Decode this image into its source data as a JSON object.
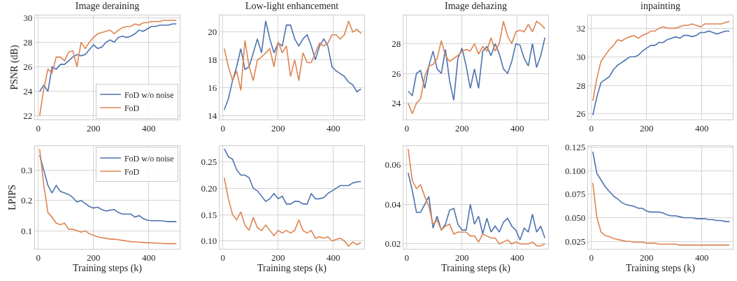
{
  "chart_data": [
    {
      "type": "line",
      "title": "Image deraining",
      "ylabel": "PSNR (dB)",
      "grid": true,
      "legend": "bottom right",
      "xlim": [
        -12,
        512
      ],
      "xticks": [
        0,
        200,
        400
      ],
      "ylim": [
        21.7,
        30.2
      ],
      "yticks": [
        22,
        24,
        26,
        28,
        30
      ],
      "x": [
        5,
        20,
        35,
        50,
        65,
        80,
        95,
        110,
        125,
        140,
        155,
        170,
        185,
        200,
        215,
        230,
        245,
        260,
        275,
        290,
        305,
        320,
        335,
        350,
        365,
        380,
        395,
        410,
        425,
        440,
        455,
        470,
        485,
        500
      ],
      "series": [
        {
          "name": "FoD w/o noise",
          "color": "#4c72b0",
          "values": [
            24.0,
            24.5,
            24.0,
            26.0,
            25.8,
            26.2,
            26.2,
            26.5,
            26.8,
            27.0,
            26.9,
            27.0,
            27.4,
            27.8,
            27.5,
            27.6,
            28.0,
            28.2,
            28.0,
            28.4,
            28.5,
            28.4,
            28.5,
            28.7,
            29.0,
            28.9,
            29.1,
            29.3,
            29.3,
            29.4,
            29.4,
            29.4,
            29.5,
            29.5
          ]
        },
        {
          "name": "FoD",
          "color": "#dd8452",
          "values": [
            22.0,
            24.2,
            25.8,
            25.5,
            26.8,
            26.8,
            26.5,
            27.2,
            27.3,
            26.0,
            28.0,
            27.5,
            28.0,
            28.4,
            28.7,
            28.8,
            28.9,
            29.0,
            28.7,
            29.0,
            29.2,
            29.3,
            29.3,
            29.5,
            29.4,
            29.6,
            29.6,
            29.7,
            29.7,
            29.7,
            29.8,
            29.8,
            29.8,
            29.8
          ]
        }
      ]
    },
    {
      "type": "line",
      "title": "Low-light enhancement",
      "grid": true,
      "xlim": [
        -12,
        512
      ],
      "xticks": [
        0,
        200,
        400
      ],
      "ylim": [
        13.7,
        21.2
      ],
      "yticks": [
        14,
        16,
        18,
        20
      ],
      "x": [
        5,
        20,
        35,
        50,
        65,
        80,
        95,
        110,
        125,
        140,
        155,
        170,
        185,
        200,
        215,
        230,
        245,
        260,
        275,
        290,
        305,
        320,
        335,
        350,
        365,
        380,
        395,
        410,
        425,
        440,
        455,
        470,
        485,
        500
      ],
      "series": [
        {
          "color": "#4c72b0",
          "values": [
            14.4,
            15.2,
            16.5,
            17.5,
            18.8,
            17.3,
            17.5,
            18.5,
            19.5,
            18.5,
            20.8,
            19.5,
            18.5,
            19.2,
            19.0,
            20.5,
            20.5,
            19.5,
            19.0,
            19.5,
            19.8,
            19.0,
            18.0,
            19.0,
            19.5,
            19.0,
            17.5,
            17.2,
            17.0,
            16.8,
            16.4,
            16.2,
            15.7,
            15.9
          ]
        },
        {
          "color": "#dd8452",
          "values": [
            18.8,
            17.5,
            16.5,
            17.2,
            15.8,
            19.4,
            17.5,
            16.5,
            18.0,
            18.2,
            18.5,
            18.8,
            17.5,
            19.3,
            18.5,
            19.0,
            16.8,
            18.0,
            16.5,
            18.5,
            17.8,
            17.8,
            18.5,
            19.2,
            19.0,
            19.2,
            19.8,
            19.8,
            19.5,
            19.8,
            20.8,
            20.0,
            20.2,
            19.9
          ]
        }
      ]
    },
    {
      "type": "line",
      "title": "Image dehazing",
      "grid": true,
      "xlim": [
        -12,
        512
      ],
      "xticks": [
        0,
        200,
        400
      ],
      "ylim": [
        22.9,
        29.9
      ],
      "yticks": [
        24,
        26,
        28
      ],
      "x": [
        5,
        20,
        35,
        50,
        65,
        80,
        95,
        110,
        125,
        140,
        155,
        170,
        185,
        200,
        215,
        230,
        245,
        260,
        275,
        290,
        305,
        320,
        335,
        350,
        365,
        380,
        395,
        410,
        425,
        440,
        455,
        470,
        485,
        500
      ],
      "series": [
        {
          "color": "#4c72b0",
          "values": [
            24.8,
            24.5,
            26.0,
            26.2,
            25.0,
            26.5,
            27.5,
            26.3,
            26.0,
            27.6,
            25.5,
            24.2,
            27.0,
            27.7,
            26.5,
            25.0,
            26.3,
            25.0,
            27.5,
            27.8,
            27.2,
            28.0,
            27.3,
            26.3,
            26.0,
            26.8,
            28.0,
            27.9,
            27.0,
            26.5,
            28.0,
            26.4,
            27.2,
            28.4
          ]
        },
        {
          "color": "#dd8452",
          "values": [
            24.0,
            23.3,
            24.0,
            24.3,
            25.8,
            26.5,
            26.6,
            27.0,
            28.2,
            27.2,
            26.8,
            27.0,
            27.2,
            27.5,
            27.6,
            27.5,
            28.0,
            27.3,
            27.8,
            27.5,
            28.4,
            27.5,
            28.0,
            29.5,
            28.5,
            28.0,
            28.8,
            28.9,
            28.8,
            29.3,
            28.8,
            29.5,
            29.3,
            29.0
          ]
        }
      ]
    },
    {
      "type": "line",
      "title": "inpainting",
      "grid": true,
      "xlim": [
        -12,
        512
      ],
      "xticks": [
        0,
        200,
        400
      ],
      "ylim": [
        25.6,
        32.9
      ],
      "yticks": [
        26,
        28,
        30,
        32
      ],
      "x": [
        5,
        20,
        35,
        50,
        65,
        80,
        95,
        110,
        125,
        140,
        155,
        170,
        185,
        200,
        215,
        230,
        245,
        260,
        275,
        290,
        305,
        320,
        335,
        350,
        365,
        380,
        395,
        410,
        425,
        440,
        455,
        470,
        485,
        500
      ],
      "series": [
        {
          "color": "#4c72b0",
          "values": [
            25.9,
            27.2,
            28.2,
            28.4,
            28.6,
            29.1,
            29.4,
            29.6,
            29.8,
            30.0,
            30.0,
            30.1,
            30.4,
            30.6,
            30.8,
            30.8,
            31.0,
            31.0,
            31.2,
            31.3,
            31.4,
            31.3,
            31.5,
            31.5,
            31.4,
            31.5,
            31.7,
            31.7,
            31.8,
            31.7,
            31.6,
            31.7,
            31.8,
            31.8
          ]
        },
        {
          "color": "#dd8452",
          "values": [
            26.9,
            28.5,
            29.7,
            30.1,
            30.5,
            30.8,
            31.2,
            31.1,
            31.3,
            31.4,
            31.5,
            31.3,
            31.5,
            31.6,
            31.8,
            31.8,
            32.0,
            32.1,
            32.0,
            32.0,
            32.0,
            32.1,
            32.2,
            32.2,
            32.3,
            32.2,
            32.1,
            32.3,
            32.3,
            32.3,
            32.3,
            32.3,
            32.4,
            32.5
          ]
        }
      ]
    },
    {
      "type": "line",
      "xlabel": "Training steps (k)",
      "ylabel": "LPIPS",
      "grid": true,
      "legend": "top right",
      "xlim": [
        -12,
        512
      ],
      "xticks": [
        0,
        200,
        400
      ],
      "ylim": [
        0.04,
        0.38
      ],
      "yticks": [
        0.1,
        0.2,
        0.3
      ],
      "x": [
        5,
        20,
        35,
        50,
        65,
        80,
        95,
        110,
        125,
        140,
        155,
        170,
        185,
        200,
        215,
        230,
        245,
        260,
        275,
        290,
        305,
        320,
        335,
        350,
        365,
        380,
        395,
        410,
        425,
        440,
        455,
        470,
        485,
        500
      ],
      "series": [
        {
          "name": "FoD w/o noise",
          "color": "#4c72b0",
          "values": [
            0.35,
            0.3,
            0.25,
            0.225,
            0.25,
            0.23,
            0.225,
            0.22,
            0.21,
            0.195,
            0.2,
            0.19,
            0.18,
            0.175,
            0.178,
            0.17,
            0.165,
            0.168,
            0.17,
            0.16,
            0.155,
            0.155,
            0.155,
            0.145,
            0.15,
            0.14,
            0.135,
            0.133,
            0.133,
            0.133,
            0.132,
            0.13,
            0.13,
            0.13
          ]
        },
        {
          "name": "FoD",
          "color": "#dd8452",
          "values": [
            0.37,
            0.25,
            0.16,
            0.145,
            0.125,
            0.12,
            0.125,
            0.105,
            0.105,
            0.1,
            0.095,
            0.1,
            0.09,
            0.085,
            0.08,
            0.077,
            0.075,
            0.072,
            0.072,
            0.07,
            0.068,
            0.066,
            0.064,
            0.063,
            0.062,
            0.061,
            0.06,
            0.06,
            0.059,
            0.058,
            0.058,
            0.057,
            0.057,
            0.057
          ]
        }
      ]
    },
    {
      "type": "line",
      "xlabel": "Training steps (k)",
      "grid": true,
      "xlim": [
        -12,
        512
      ],
      "xticks": [
        0,
        200,
        400
      ],
      "ylim": [
        0.085,
        0.28
      ],
      "yticks": [
        {
          "value": 0.1,
          "label": "0.10"
        },
        0.15,
        {
          "value": 0.2,
          "label": "0.20"
        },
        0.25
      ],
      "x": [
        5,
        20,
        35,
        50,
        65,
        80,
        95,
        110,
        125,
        140,
        155,
        170,
        185,
        200,
        215,
        230,
        245,
        260,
        275,
        290,
        305,
        320,
        335,
        350,
        365,
        380,
        395,
        410,
        425,
        440,
        455,
        470,
        485,
        500
      ],
      "series": [
        {
          "color": "#4c72b0",
          "values": [
            0.275,
            0.26,
            0.255,
            0.235,
            0.225,
            0.225,
            0.22,
            0.2,
            0.195,
            0.185,
            0.175,
            0.18,
            0.19,
            0.18,
            0.185,
            0.17,
            0.17,
            0.175,
            0.175,
            0.17,
            0.17,
            0.19,
            0.18,
            0.18,
            0.182,
            0.19,
            0.195,
            0.2,
            0.205,
            0.205,
            0.205,
            0.21,
            0.212,
            0.213
          ]
        },
        {
          "color": "#dd8452",
          "values": [
            0.22,
            0.18,
            0.15,
            0.14,
            0.155,
            0.13,
            0.12,
            0.145,
            0.125,
            0.12,
            0.13,
            0.12,
            0.11,
            0.12,
            0.115,
            0.12,
            0.115,
            0.12,
            0.14,
            0.12,
            0.115,
            0.12,
            0.105,
            0.108,
            0.105,
            0.108,
            0.1,
            0.103,
            0.105,
            0.1,
            0.09,
            0.098,
            0.093,
            0.097
          ]
        }
      ]
    },
    {
      "type": "line",
      "xlabel": "Training steps (k)",
      "grid": true,
      "xlim": [
        -12,
        512
      ],
      "xticks": [
        0,
        200,
        400
      ],
      "ylim": [
        0.0175,
        0.0695
      ],
      "yticks": [
        0.02,
        0.04,
        0.06
      ],
      "x": [
        5,
        20,
        35,
        50,
        65,
        80,
        95,
        110,
        125,
        140,
        155,
        170,
        185,
        200,
        215,
        230,
        245,
        260,
        275,
        290,
        305,
        320,
        335,
        350,
        365,
        380,
        395,
        410,
        425,
        440,
        455,
        470,
        485,
        500
      ],
      "series": [
        {
          "color": "#4c72b0",
          "values": [
            0.056,
            0.047,
            0.036,
            0.036,
            0.04,
            0.044,
            0.028,
            0.034,
            0.027,
            0.03,
            0.037,
            0.038,
            0.03,
            0.027,
            0.027,
            0.04,
            0.03,
            0.034,
            0.025,
            0.033,
            0.026,
            0.029,
            0.026,
            0.031,
            0.033,
            0.029,
            0.027,
            0.022,
            0.028,
            0.026,
            0.035,
            0.026,
            0.029,
            0.023
          ]
        },
        {
          "color": "#dd8452",
          "values": [
            0.068,
            0.052,
            0.048,
            0.05,
            0.044,
            0.039,
            0.03,
            0.032,
            0.027,
            0.029,
            0.03,
            0.025,
            0.026,
            0.026,
            0.026,
            0.024,
            0.024,
            0.021,
            0.025,
            0.024,
            0.023,
            0.023,
            0.02,
            0.021,
            0.022,
            0.02,
            0.021,
            0.02,
            0.02,
            0.02,
            0.021,
            0.019,
            0.019,
            0.02
          ]
        }
      ]
    },
    {
      "type": "line",
      "xlabel": "Training steps (k)",
      "grid": true,
      "xlim": [
        -12,
        512
      ],
      "xticks": [
        0,
        200,
        400
      ],
      "ylim": [
        0.017,
        0.126
      ],
      "yticks": [
        0.025,
        {
          "value": 0.05,
          "label": "0.050"
        },
        0.075,
        {
          "value": 0.1,
          "label": "0.100"
        },
        0.125
      ],
      "x": [
        5,
        20,
        35,
        50,
        65,
        80,
        95,
        110,
        125,
        140,
        155,
        170,
        185,
        200,
        215,
        230,
        245,
        260,
        275,
        290,
        305,
        320,
        335,
        350,
        365,
        380,
        395,
        410,
        425,
        440,
        455,
        470,
        485,
        500
      ],
      "series": [
        {
          "color": "#4c72b0",
          "values": [
            0.12,
            0.097,
            0.09,
            0.083,
            0.078,
            0.073,
            0.07,
            0.066,
            0.064,
            0.063,
            0.062,
            0.06,
            0.06,
            0.057,
            0.056,
            0.056,
            0.056,
            0.055,
            0.053,
            0.052,
            0.052,
            0.051,
            0.05,
            0.05,
            0.05,
            0.049,
            0.049,
            0.049,
            0.048,
            0.048,
            0.047,
            0.047,
            0.046,
            0.046
          ]
        },
        {
          "color": "#dd8452",
          "values": [
            0.087,
            0.05,
            0.035,
            0.031,
            0.03,
            0.028,
            0.027,
            0.026,
            0.025,
            0.025,
            0.024,
            0.024,
            0.024,
            0.023,
            0.023,
            0.023,
            0.022,
            0.022,
            0.022,
            0.022,
            0.022,
            0.021,
            0.021,
            0.021,
            0.021,
            0.021,
            0.021,
            0.021,
            0.021,
            0.021,
            0.021,
            0.021,
            0.021,
            0.021
          ]
        }
      ]
    }
  ]
}
